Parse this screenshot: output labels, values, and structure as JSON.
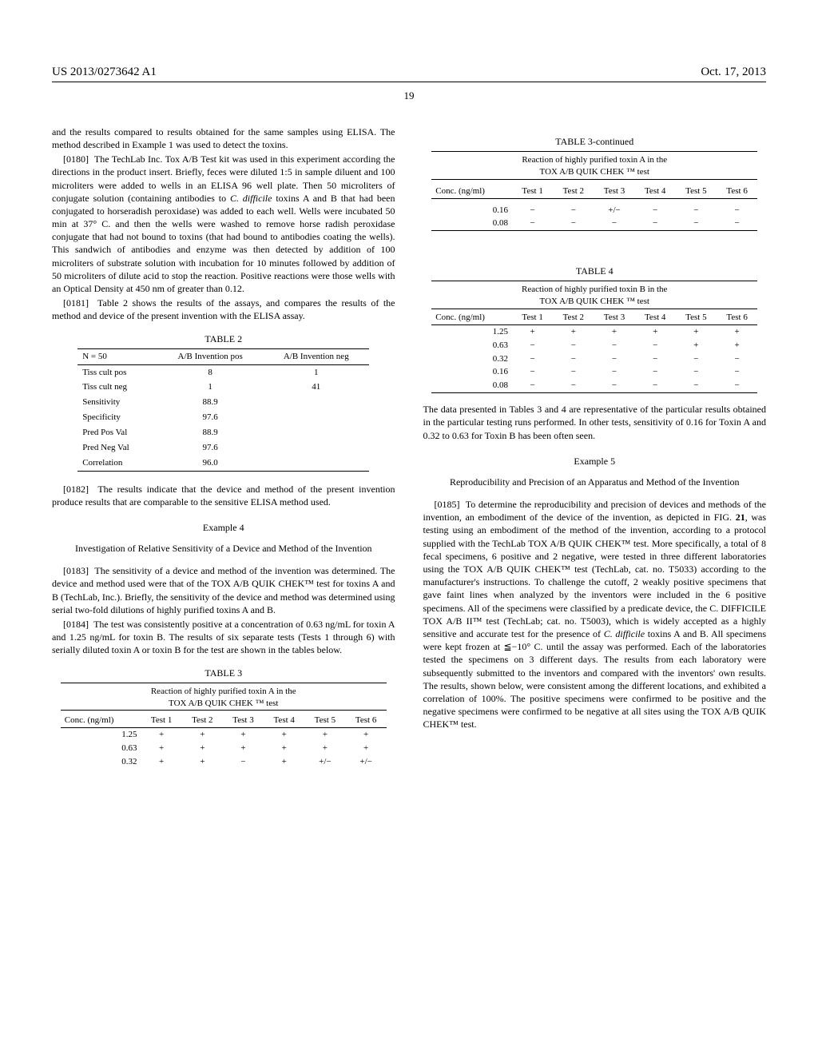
{
  "header": {
    "left": "US 2013/0273642 A1",
    "right": "Oct. 17, 2013"
  },
  "page_number": "19",
  "col1": {
    "p_intro": "and the results compared to results obtained for the same samples using ELISA. The method described in Example 1 was used to detect the toxins.",
    "p0180_num": "[0180]",
    "p0180": "The TechLab Inc. Tox A/B Test kit was used in this experiment according the directions in the product insert. Briefly, feces were diluted 1:5 in sample diluent and 100 microliters were added to wells in an ELISA 96 well plate. Then 50 microliters of conjugate solution (containing antibodies to ",
    "p0180_it": "C. difficile",
    "p0180_b": " toxins A and B that had been conjugated to horseradish peroxidase) was added to each well. Wells were incubated 50 min at 37° C. and then the wells were washed to remove horse radish peroxidase conjugate that had not bound to toxins (that had bound to antibodies coating the wells). This sandwich of antibodies and enzyme was then detected by addition of 100 microliters of substrate solution with incubation for 10 minutes followed by addition of 50 microliters of dilute acid to stop the reaction. Positive reactions were those wells with an Optical Density at 450 nm of greater than 0.12.",
    "p0181_num": "[0181]",
    "p0181": "Table 2 shows the results of the assays, and compares the results of the method and device of the present invention with the ELISA assay.",
    "table2": {
      "caption": "TABLE 2",
      "headers": [
        "N = 50",
        "A/B Invention pos",
        "A/B Invention neg"
      ],
      "rows": [
        [
          "Tiss cult pos",
          "8",
          "1"
        ],
        [
          "Tiss cult neg",
          "1",
          "41"
        ],
        [
          "Sensitivity",
          "88.9",
          ""
        ],
        [
          "Specificity",
          "97.6",
          ""
        ],
        [
          "Pred Pos Val",
          "88.9",
          ""
        ],
        [
          "Pred Neg Val",
          "97.6",
          ""
        ],
        [
          "Correlation",
          "96.0",
          ""
        ]
      ]
    },
    "p0182_num": "[0182]",
    "p0182": "The results indicate that the device and method of the present invention produce results that are comparable to the sensitive ELISA method used.",
    "ex4_hdr": "Example 4",
    "ex4_title": "Investigation of Relative Sensitivity of a Device and Method of the Invention",
    "p0183_num": "[0183]",
    "p0183": "The sensitivity of a device and method of the invention was determined. The device and method used were that of the TOX A/B QUIK CHEK™ test for toxins A and B (TechLab, Inc.). Briefly, the sensitivity of the device and method was determined using serial two-fold dilutions of highly purified toxins A and B.",
    "p0184_num": "[0184]",
    "p0184": "The test was consistently positive at a concentration of 0.63 ng/mL for toxin A and 1.25 ng/mL for toxin B. The results of six separate tests (Tests 1 through 6) with serially diluted toxin A or toxin B for the test are shown in the tables below.",
    "table3": {
      "caption": "TABLE 3",
      "subtitle1": "Reaction of highly purified toxin A in the",
      "subtitle2": "TOX A/B QUIK CHEK ™ test",
      "headers": [
        "Conc. (ng/ml)",
        "Test 1",
        "Test 2",
        "Test 3",
        "Test 4",
        "Test 5",
        "Test 6"
      ],
      "rows": [
        [
          "1.25",
          "+",
          "+",
          "+",
          "+",
          "+",
          "+"
        ],
        [
          "0.63",
          "+",
          "+",
          "+",
          "+",
          "+",
          "+"
        ],
        [
          "0.32",
          "+",
          "+",
          "−",
          "+",
          "+/−",
          "+/−"
        ]
      ]
    }
  },
  "col2": {
    "table3c": {
      "caption": "TABLE 3-continued",
      "subtitle1": "Reaction of highly purified toxin A in the",
      "subtitle2": "TOX A/B QUIK CHEK ™ test",
      "headers": [
        "Conc. (ng/ml)",
        "Test 1",
        "Test 2",
        "Test 3",
        "Test 4",
        "Test 5",
        "Test 6"
      ],
      "rows": [
        [
          "0.16",
          "−",
          "−",
          "+/−",
          "−",
          "−",
          "−"
        ],
        [
          "0.08",
          "−",
          "−",
          "−",
          "−",
          "−",
          "−"
        ]
      ]
    },
    "table4": {
      "caption": "TABLE 4",
      "subtitle1": "Reaction of highly purified toxin B in the",
      "subtitle2": "TOX A/B QUIK CHEK ™ test",
      "headers": [
        "Conc. (ng/ml)",
        "Test 1",
        "Test 2",
        "Test 3",
        "Test 4",
        "Test 5",
        "Test 6"
      ],
      "rows": [
        [
          "1.25",
          "+",
          "+",
          "+",
          "+",
          "+",
          "+"
        ],
        [
          "0.63",
          "−",
          "−",
          "−",
          "−",
          "+",
          "+"
        ],
        [
          "0.32",
          "−",
          "−",
          "−",
          "−",
          "−",
          "−"
        ],
        [
          "0.16",
          "−",
          "−",
          "−",
          "−",
          "−",
          "−"
        ],
        [
          "0.08",
          "−",
          "−",
          "−",
          "−",
          "−",
          "−"
        ]
      ]
    },
    "p_after_t4": "The data presented in Tables 3 and 4 are representative of the particular results obtained in the particular testing runs performed. In other tests, sensitivity of 0.16 for Toxin A and 0.32 to 0.63 for Toxin B has been often seen.",
    "ex5_hdr": "Example 5",
    "ex5_title": "Reproducibility and Precision of an Apparatus and Method of the Invention",
    "p0185_num": "[0185]",
    "p0185_a": "To determine the reproducibility and precision of devices and methods of the invention, an embodiment of the device of the invention, as depicted in FIG. ",
    "p0185_fig": "21",
    "p0185_b": ", was testing using an embodiment of the method of the invention, according to a protocol supplied with the TechLab TOX A/B QUIK CHEK™ test. More specifically, a total of 8 fecal specimens, 6 positive and 2 negative, were tested in three different laboratories using the TOX A/B QUIK CHEK™ test (TechLab, cat. no. T5033) according to the manufacturer's instructions. To challenge the cutoff, 2 weakly positive specimens that gave faint lines when analyzed by the inventors were included in the 6 positive specimens. All of the specimens were classified by a predicate device, the C. DIFFICILE TOX A/B II™ test (TechLab; cat. no. T5003), which is widely accepted as a highly sensitive and accurate test for the presence of ",
    "p0185_it": "C. difficile",
    "p0185_c": " toxins A and B. All specimens were kept frozen at ≦−10° C. until the assay was performed. Each of the laboratories tested the specimens on 3 different days. The results from each laboratory were subsequently submitted to the inventors and compared with the inventors' own results. The results, shown below, were consistent among the different locations, and exhibited a correlation of 100%. The positive specimens were confirmed to be positive and the negative specimens were confirmed to be negative at all sites using the TOX A/B QUIK CHEK™ test."
  }
}
